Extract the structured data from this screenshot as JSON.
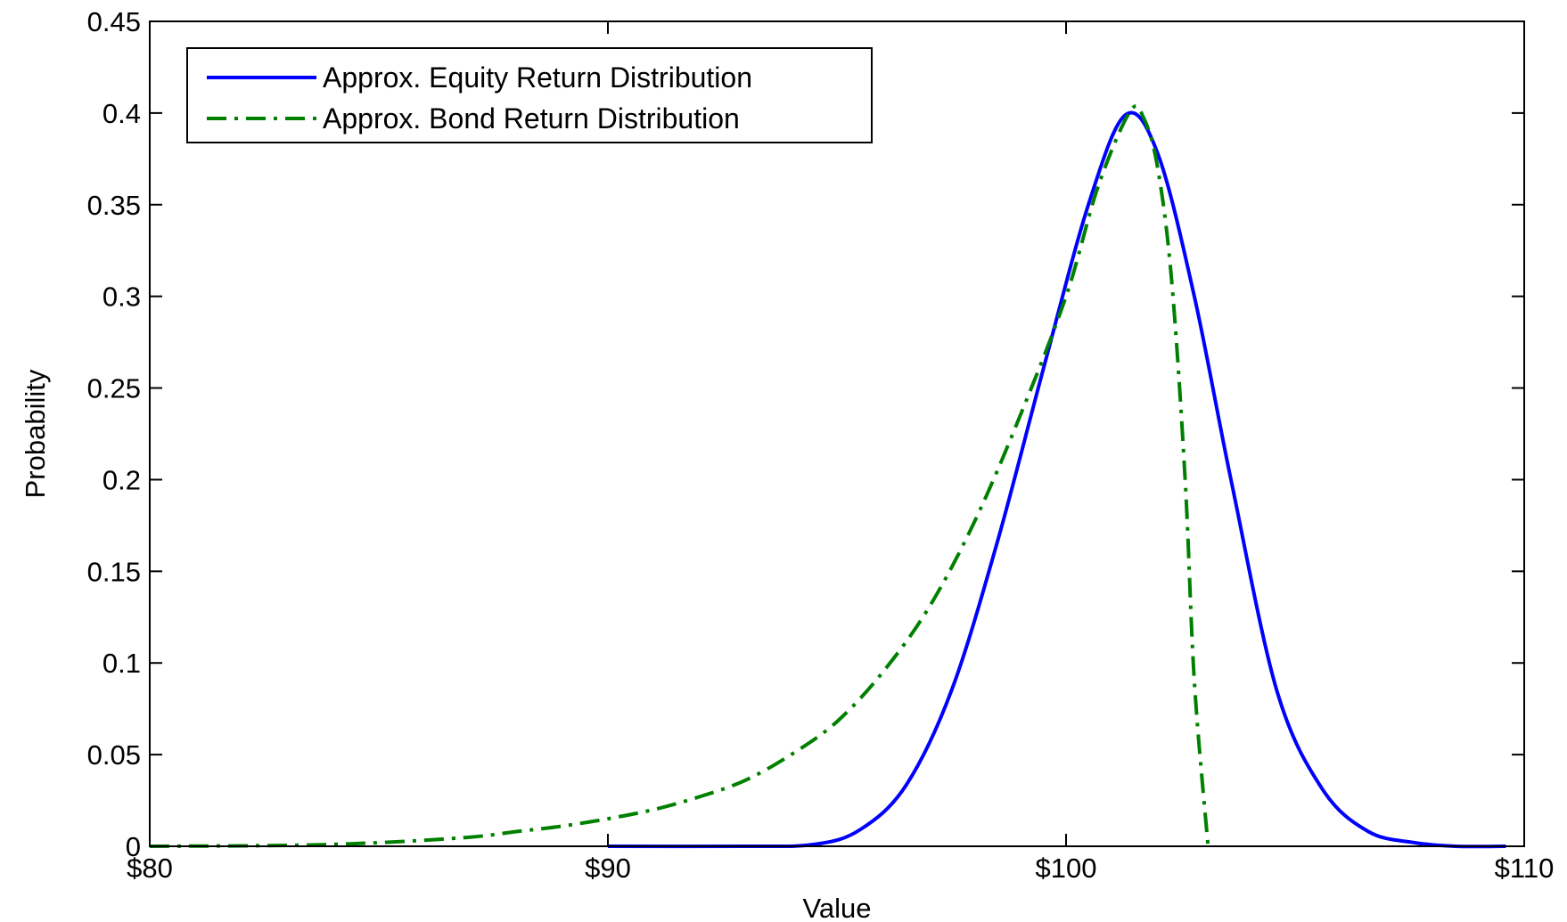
{
  "chart_data": {
    "type": "line",
    "title": "",
    "xlabel": "Value",
    "ylabel": "Probability",
    "xlim": [
      80,
      110
    ],
    "ylim": [
      0,
      0.45
    ],
    "x_ticks": [
      80,
      90,
      100,
      110
    ],
    "x_tick_labels": [
      "$80",
      "$90",
      "$100",
      "$110"
    ],
    "y_ticks": [
      0,
      0.05,
      0.1,
      0.15,
      0.2,
      0.25,
      0.3,
      0.35,
      0.4,
      0.45
    ],
    "y_tick_labels": [
      "0",
      "0.05",
      "0.1",
      "0.15",
      "0.2",
      "0.25",
      "0.3",
      "0.35",
      "0.4",
      "0.45"
    ],
    "grid": false,
    "legend_position": "top-left",
    "series": [
      {
        "name": "Approx. Equity Return Distribution",
        "color": "#0000ff",
        "style": "solid",
        "x": [
          90,
          93,
          94.5,
          95.5,
          96.5,
          97.5,
          98.5,
          99.5,
          100.5,
          101.3,
          102,
          102.8,
          103.6,
          104.6,
          105.6,
          106.6,
          107.6,
          108.5,
          109.6
        ],
        "y": [
          0,
          0,
          0.001,
          0.009,
          0.033,
          0.085,
          0.166,
          0.26,
          0.351,
          0.399,
          0.378,
          0.3,
          0.2,
          0.085,
          0.031,
          0.008,
          0.002,
          0,
          0
        ]
      },
      {
        "name": "Approx. Bond Return Distribution",
        "color": "#008000",
        "style": "dashdot",
        "x": [
          80,
          83,
          85,
          87,
          88,
          89,
          90,
          91,
          92,
          93,
          94,
          95,
          96,
          97,
          98,
          99,
          100,
          100.7,
          101.4,
          101.7,
          102,
          102.3,
          102.6,
          102.8,
          103.1
        ],
        "y": [
          0,
          0.0005,
          0.002,
          0.005,
          0.008,
          0.011,
          0.015,
          0.02,
          0.027,
          0.036,
          0.05,
          0.068,
          0.095,
          0.13,
          0.177,
          0.235,
          0.3,
          0.36,
          0.401,
          0.397,
          0.37,
          0.31,
          0.2,
          0.09,
          0
        ]
      }
    ]
  }
}
